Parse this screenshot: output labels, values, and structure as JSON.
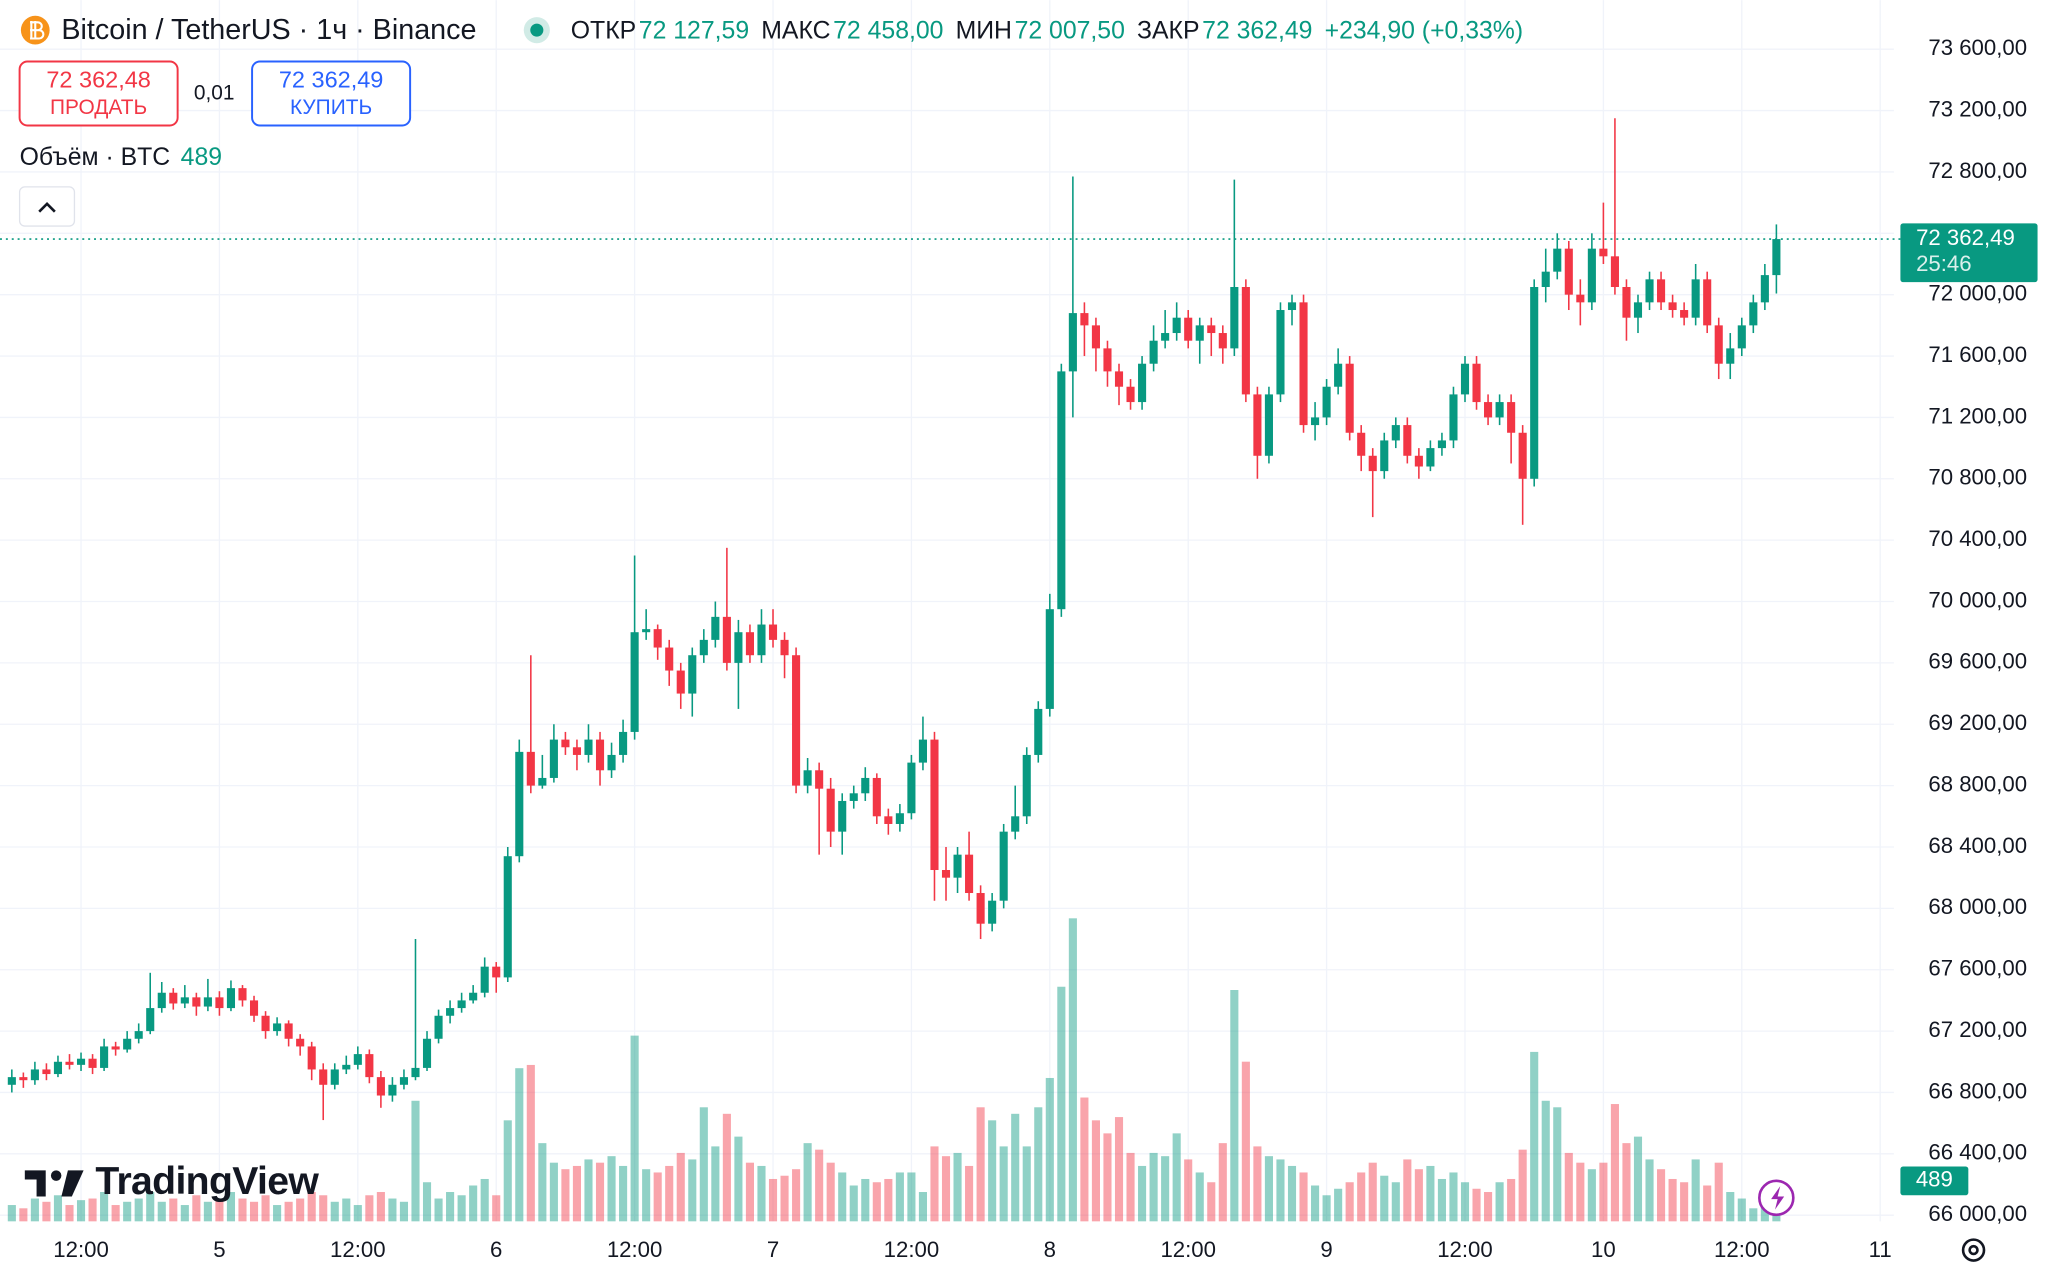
{
  "header": {
    "symbol": "Bitcoin / TetherUS · 1ч · Binance",
    "ohlc": [
      {
        "label": "ОТКР",
        "value": "72 127,59"
      },
      {
        "label": "МАКС",
        "value": "72 458,00"
      },
      {
        "label": "МИН",
        "value": "72 007,50"
      },
      {
        "label": "ЗАКР",
        "value": "72 362,49"
      }
    ],
    "change": "+234,90 (+0,33%)",
    "sell": {
      "price": "72 362,48",
      "label": "ПРОДАТЬ"
    },
    "spread": "0,01",
    "buy": {
      "price": "72 362,49",
      "label": "КУПИТЬ"
    },
    "price_tag": "72 362,49",
    "countdown": "25:46",
    "logo": "TradingView"
  },
  "chart_data": {
    "type": "candlestick",
    "up_color": "#089981",
    "down_color": "#f23645",
    "grid": true,
    "ylim": [
      65960,
      73920
    ],
    "yticks": [
      {
        "value": 66000,
        "label": "66 000,00"
      },
      {
        "value": 66400,
        "label": "66 400,00"
      },
      {
        "value": 66800,
        "label": "66 800,00"
      },
      {
        "value": 67200,
        "label": "67 200,00"
      },
      {
        "value": 67600,
        "label": "67 600,00"
      },
      {
        "value": 68000,
        "label": "68 000,00"
      },
      {
        "value": 68400,
        "label": "68 400,00"
      },
      {
        "value": 68800,
        "label": "68 800,00"
      },
      {
        "value": 69200,
        "label": "69 200,00"
      },
      {
        "value": 69600,
        "label": "69 600,00"
      },
      {
        "value": 70000,
        "label": "70 000,00"
      },
      {
        "value": 70400,
        "label": "70 400,00"
      },
      {
        "value": 70800,
        "label": "70 800,00"
      },
      {
        "value": 71200,
        "label": "71 200,00"
      },
      {
        "value": 71600,
        "label": "71 600,00"
      },
      {
        "value": 72000,
        "label": "72 000,00"
      },
      {
        "value": 72400,
        "label": "72 400,00"
      },
      {
        "value": 72800,
        "label": "72 800,00"
      },
      {
        "value": 73200,
        "label": "73 200,00"
      },
      {
        "value": 73600,
        "label": "73 600,00"
      }
    ],
    "categories": [
      null,
      null,
      null,
      null,
      null,
      null,
      "12:00",
      null,
      null,
      null,
      null,
      null,
      null,
      null,
      null,
      null,
      null,
      null,
      "5",
      null,
      null,
      null,
      null,
      null,
      null,
      null,
      null,
      null,
      null,
      null,
      "12:00",
      null,
      null,
      null,
      null,
      null,
      null,
      null,
      null,
      null,
      null,
      null,
      "6",
      null,
      null,
      null,
      null,
      null,
      null,
      null,
      null,
      null,
      null,
      null,
      "12:00",
      null,
      null,
      null,
      null,
      null,
      null,
      null,
      null,
      null,
      null,
      null,
      "7",
      null,
      null,
      null,
      null,
      null,
      null,
      null,
      null,
      null,
      null,
      null,
      "12:00",
      null,
      null,
      null,
      null,
      null,
      null,
      null,
      null,
      null,
      null,
      null,
      "8",
      null,
      null,
      null,
      null,
      null,
      null,
      null,
      null,
      null,
      null,
      null,
      "12:00",
      null,
      null,
      null,
      null,
      null,
      null,
      null,
      null,
      null,
      null,
      null,
      "9",
      null,
      null,
      null,
      null,
      null,
      null,
      null,
      null,
      null,
      null,
      null,
      "12:00",
      null,
      null,
      null,
      null,
      null,
      null,
      null,
      null,
      null,
      null,
      null,
      "10",
      null,
      null,
      null,
      null,
      null,
      null,
      null,
      null,
      null,
      null,
      null,
      "12:00",
      null,
      null,
      null,
      null,
      null,
      null,
      null,
      null,
      null,
      null,
      null,
      "11"
    ],
    "open": [
      66850,
      66900,
      66880,
      66950,
      66920,
      67000,
      66980,
      67020,
      66960,
      67100,
      67080,
      67150,
      67200,
      67350,
      67450,
      67380,
      67420,
      67360,
      67420,
      67350,
      67480,
      67400,
      67300,
      67200,
      67250,
      67150,
      67100,
      66950,
      66850,
      66950,
      66980,
      67050,
      66900,
      66780,
      66850,
      66900,
      66960,
      67150,
      67300,
      67350,
      67400,
      67450,
      67620,
      67550,
      68340,
      69020,
      68800,
      68850,
      69100,
      69050,
      69000,
      69100,
      68900,
      69000,
      69150,
      69800,
      69820,
      69700,
      69550,
      69400,
      69650,
      69750,
      69900,
      69600,
      69800,
      69650,
      69850,
      69750,
      69650,
      68800,
      68900,
      68780,
      68500,
      68700,
      68750,
      68850,
      68600,
      68550,
      68620,
      68950,
      69100,
      68250,
      68200,
      68350,
      68100,
      67900,
      68050,
      68500,
      68600,
      69000,
      69300,
      69950,
      71500,
      71880,
      71800,
      71650,
      71500,
      71400,
      71300,
      71550,
      71700,
      71750,
      71850,
      71700,
      71800,
      71750,
      71650,
      72050,
      71350,
      70950,
      71350,
      71900,
      71950,
      71150,
      71200,
      71400,
      71550,
      71100,
      70950,
      70850,
      71050,
      71150,
      70950,
      70880,
      71000,
      71050,
      71350,
      71550,
      71300,
      71200,
      71300,
      71100,
      70800,
      72050,
      72150,
      72300,
      72000,
      71950,
      72300,
      72250,
      72050,
      71850,
      71950,
      72100,
      71950,
      71900,
      71850,
      72100,
      71800,
      71550,
      71650,
      71800,
      71950,
      72127.59,
      null,
      null,
      null,
      null,
      null,
      null,
      null,
      null,
      null
    ],
    "high": [
      66950,
      66930,
      67000,
      66990,
      67040,
      67050,
      67060,
      67050,
      67150,
      67130,
      67200,
      67250,
      67580,
      67520,
      67480,
      67500,
      67450,
      67540,
      67460,
      67530,
      67500,
      67430,
      67330,
      67290,
      67270,
      67180,
      67130,
      66990,
      66990,
      67040,
      67100,
      67080,
      66940,
      66900,
      66950,
      67800,
      67200,
      67340,
      67400,
      67450,
      67500,
      67680,
      67650,
      68400,
      69100,
      69650,
      69000,
      69200,
      69150,
      69100,
      69200,
      69150,
      69080,
      69230,
      70300,
      69950,
      69850,
      69750,
      69600,
      69700,
      69820,
      70000,
      70350,
      69880,
      69850,
      69950,
      69950,
      69800,
      69700,
      68980,
      68950,
      68850,
      68750,
      68800,
      68920,
      68880,
      68650,
      68680,
      69000,
      69250,
      69150,
      68400,
      68400,
      68500,
      68150,
      68100,
      68550,
      68800,
      69050,
      69350,
      70050,
      71550,
      72770,
      71950,
      71850,
      71700,
      71550,
      71450,
      71600,
      71800,
      71900,
      71950,
      71900,
      71850,
      71850,
      71800,
      72750,
      72100,
      71400,
      71400,
      71950,
      72000,
      72000,
      71300,
      71450,
      71650,
      71600,
      71150,
      71000,
      71100,
      71200,
      71200,
      71000,
      71050,
      71100,
      71400,
      71600,
      71600,
      71350,
      71350,
      71350,
      71150,
      72100,
      72300,
      72400,
      72350,
      72100,
      72400,
      72600,
      73150,
      72100,
      72000,
      72150,
      72150,
      72000,
      71950,
      72200,
      72150,
      71850,
      71750,
      71850,
      72000,
      72200,
      72458,
      null,
      null,
      null,
      null,
      null,
      null,
      null,
      null,
      null
    ],
    "low": [
      66800,
      66830,
      66850,
      66880,
      66900,
      66950,
      66940,
      66920,
      66940,
      67040,
      67060,
      67120,
      67180,
      67320,
      67340,
      67350,
      67300,
      67330,
      67300,
      67330,
      67360,
      67260,
      67150,
      67170,
      67100,
      67040,
      66880,
      66620,
      66820,
      66920,
      66950,
      66860,
      66700,
      66740,
      66820,
      66880,
      66940,
      67120,
      67250,
      67320,
      67380,
      67420,
      67450,
      67520,
      68300,
      68750,
      68780,
      68820,
      69000,
      68900,
      68950,
      68800,
      68850,
      68950,
      69100,
      69750,
      69620,
      69450,
      69300,
      69250,
      69600,
      69700,
      69550,
      69300,
      69600,
      69600,
      69700,
      69500,
      68750,
      68750,
      68350,
      68400,
      68350,
      68650,
      68700,
      68550,
      68480,
      68500,
      68580,
      68900,
      68050,
      68050,
      68100,
      68050,
      67800,
      67850,
      68000,
      68450,
      68550,
      68950,
      69250,
      69900,
      71200,
      71600,
      71500,
      71400,
      71280,
      71250,
      71250,
      71500,
      71650,
      71700,
      71650,
      71550,
      71600,
      71550,
      71600,
      71300,
      70800,
      70900,
      71300,
      71800,
      71100,
      71050,
      71150,
      71350,
      71050,
      70850,
      70550,
      70800,
      71000,
      70900,
      70800,
      70850,
      70950,
      71000,
      71300,
      71250,
      71150,
      71150,
      70900,
      70500,
      70750,
      71950,
      72100,
      71900,
      71800,
      71900,
      72200,
      72000,
      71700,
      71750,
      71900,
      71900,
      71850,
      71800,
      71800,
      71750,
      71450,
      71450,
      71600,
      71750,
      71900,
      72007.5,
      null,
      null,
      null,
      null,
      null,
      null,
      null,
      null,
      null
    ],
    "close": [
      66900,
      66880,
      66950,
      66920,
      67000,
      66980,
      67020,
      66960,
      67100,
      67080,
      67150,
      67200,
      67350,
      67450,
      67380,
      67420,
      67360,
      67420,
      67350,
      67480,
      67400,
      67300,
      67200,
      67250,
      67150,
      67100,
      66950,
      66850,
      66950,
      66980,
      67050,
      66900,
      66780,
      66850,
      66900,
      66960,
      67150,
      67300,
      67350,
      67400,
      67450,
      67620,
      67550,
      68340,
      69020,
      68800,
      68850,
      69100,
      69050,
      69000,
      69100,
      68900,
      69000,
      69150,
      69800,
      69820,
      69700,
      69550,
      69400,
      69650,
      69750,
      69900,
      69600,
      69800,
      69650,
      69850,
      69750,
      69650,
      68800,
      68900,
      68780,
      68500,
      68700,
      68750,
      68850,
      68600,
      68550,
      68620,
      68950,
      69100,
      68250,
      68200,
      68350,
      68100,
      67900,
      68050,
      68500,
      68600,
      69000,
      69300,
      69950,
      71500,
      71880,
      71800,
      71650,
      71500,
      71400,
      71300,
      71550,
      71700,
      71750,
      71850,
      71700,
      71800,
      71750,
      71650,
      72050,
      71350,
      70950,
      71350,
      71900,
      71950,
      71150,
      71200,
      71400,
      71550,
      71100,
      70950,
      70850,
      71050,
      71150,
      70950,
      70880,
      71000,
      71050,
      71350,
      71550,
      71300,
      71200,
      71300,
      71100,
      70800,
      72050,
      72150,
      72300,
      72000,
      71950,
      72300,
      72250,
      72050,
      71850,
      71950,
      72100,
      71950,
      71900,
      71850,
      72100,
      71800,
      71550,
      71650,
      71800,
      71950,
      72127.59,
      72362.49,
      null,
      null,
      null,
      null,
      null,
      null,
      null,
      null,
      null
    ],
    "volume": {
      "name": "Объём · BTC",
      "values": [
        500,
        400,
        700,
        600,
        800,
        500,
        650,
        700,
        900,
        500,
        600,
        700,
        900,
        600,
        700,
        500,
        800,
        600,
        700,
        900,
        700,
        600,
        800,
        500,
        600,
        700,
        900,
        800,
        600,
        700,
        500,
        800,
        900,
        700,
        600,
        3700,
        1200,
        700,
        900,
        800,
        1100,
        1300,
        800,
        3100,
        4700,
        4800,
        2400,
        1800,
        1600,
        1700,
        1900,
        1800,
        2000,
        1700,
        5700,
        1600,
        1500,
        1700,
        2100,
        1900,
        3500,
        2300,
        3300,
        2600,
        1800,
        1700,
        1300,
        1400,
        1600,
        2400,
        2200,
        1800,
        1500,
        1100,
        1300,
        1200,
        1300,
        1500,
        1500,
        900,
        2300,
        2000,
        2100,
        1700,
        3500,
        3100,
        2300,
        3300,
        2300,
        3500,
        4400,
        7200,
        9300,
        3800,
        3100,
        2700,
        3200,
        2100,
        1700,
        2100,
        2000,
        2700,
        1900,
        1500,
        1200,
        2400,
        7100,
        4900,
        2300,
        2000,
        1900,
        1700,
        1500,
        1100,
        800,
        1000,
        1200,
        1500,
        1800,
        1400,
        1200,
        1900,
        1600,
        1700,
        1300,
        1500,
        1200,
        1000,
        900,
        1200,
        1300,
        2200,
        5200,
        3700,
        3500,
        2100,
        1800,
        1600,
        1800,
        3600,
        2400,
        2600,
        1900,
        1600,
        1300,
        1200,
        1900,
        1100,
        1800,
        900,
        700,
        400,
        600,
        489,
        null,
        null,
        null,
        null,
        null,
        null,
        null,
        null,
        null
      ]
    }
  }
}
